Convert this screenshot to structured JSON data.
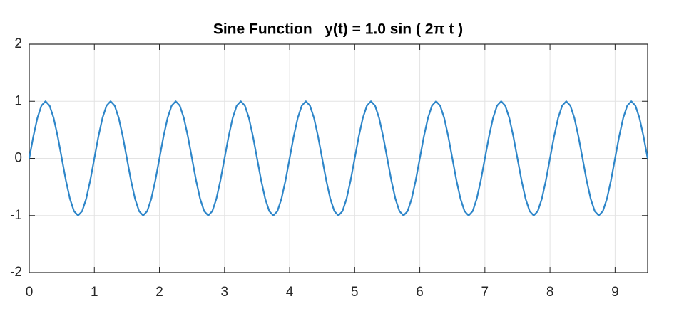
{
  "chart_data": {
    "type": "line",
    "title": "Sine Function   y(t) = 1.0 sin ( 2π t )",
    "x": [
      0,
      0.0625,
      0.125,
      0.1875,
      0.25,
      0.3125,
      0.375,
      0.4375,
      0.5,
      0.5625,
      0.625,
      0.6875,
      0.75,
      0.8125,
      0.875,
      0.9375,
      1,
      1.0625,
      1.125,
      1.1875,
      1.25,
      1.3125,
      1.375,
      1.4375,
      1.5,
      1.5625,
      1.625,
      1.6875,
      1.75,
      1.8125,
      1.875,
      1.9375,
      2,
      2.0625,
      2.125,
      2.1875,
      2.25,
      2.3125,
      2.375,
      2.4375,
      2.5,
      2.5625,
      2.625,
      2.6875,
      2.75,
      2.8125,
      2.875,
      2.9375,
      3,
      3.0625,
      3.125,
      3.1875,
      3.25,
      3.3125,
      3.375,
      3.4375,
      3.5,
      3.5625,
      3.625,
      3.6875,
      3.75,
      3.8125,
      3.875,
      3.9375,
      4,
      4.0625,
      4.125,
      4.1875,
      4.25,
      4.3125,
      4.375,
      4.4375,
      4.5,
      4.5625,
      4.625,
      4.6875,
      4.75,
      4.8125,
      4.875,
      4.9375,
      5,
      5.0625,
      5.125,
      5.1875,
      5.25,
      5.3125,
      5.375,
      5.4375,
      5.5,
      5.5625,
      5.625,
      5.6875,
      5.75,
      5.8125,
      5.875,
      5.9375,
      6,
      6.0625,
      6.125,
      6.1875,
      6.25,
      6.3125,
      6.375,
      6.4375,
      6.5,
      6.5625,
      6.625,
      6.6875,
      6.75,
      6.8125,
      6.875,
      6.9375,
      7,
      7.0625,
      7.125,
      7.1875,
      7.25,
      7.3125,
      7.375,
      7.4375,
      7.5,
      7.5625,
      7.625,
      7.6875,
      7.75,
      7.8125,
      7.875,
      7.9375,
      8,
      8.0625,
      8.125,
      8.1875,
      8.25,
      8.3125,
      8.375,
      8.4375,
      8.5,
      8.5625,
      8.625,
      8.6875,
      8.75,
      8.8125,
      8.875,
      8.9375,
      9,
      9.0625,
      9.125,
      9.1875,
      9.25,
      9.3125,
      9.375,
      9.4375,
      9.5
    ],
    "series": [
      {
        "color": "#2e86c9",
        "values": [
          0,
          0.383,
          0.707,
          0.924,
          1,
          0.924,
          0.707,
          0.383,
          0,
          -0.383,
          -0.707,
          -0.924,
          -1,
          -0.924,
          -0.707,
          -0.383,
          0,
          0.383,
          0.707,
          0.924,
          1,
          0.924,
          0.707,
          0.383,
          0,
          -0.383,
          -0.707,
          -0.924,
          -1,
          -0.924,
          -0.707,
          -0.383,
          0,
          0.383,
          0.707,
          0.924,
          1,
          0.924,
          0.707,
          0.383,
          0,
          -0.383,
          -0.707,
          -0.924,
          -1,
          -0.924,
          -0.707,
          -0.383,
          0,
          0.383,
          0.707,
          0.924,
          1,
          0.924,
          0.707,
          0.383,
          0,
          -0.383,
          -0.707,
          -0.924,
          -1,
          -0.924,
          -0.707,
          -0.383,
          0,
          0.383,
          0.707,
          0.924,
          1,
          0.924,
          0.707,
          0.383,
          0,
          -0.383,
          -0.707,
          -0.924,
          -1,
          -0.924,
          -0.707,
          -0.383,
          0,
          0.383,
          0.707,
          0.924,
          1,
          0.924,
          0.707,
          0.383,
          0,
          -0.383,
          -0.707,
          -0.924,
          -1,
          -0.924,
          -0.707,
          -0.383,
          0,
          0.383,
          0.707,
          0.924,
          1,
          0.924,
          0.707,
          0.383,
          0,
          -0.383,
          -0.707,
          -0.924,
          -1,
          -0.924,
          -0.707,
          -0.383,
          0,
          0.383,
          0.707,
          0.924,
          1,
          0.924,
          0.707,
          0.383,
          0,
          -0.383,
          -0.707,
          -0.924,
          -1,
          -0.924,
          -0.707,
          -0.383,
          0,
          0.383,
          0.707,
          0.924,
          1,
          0.924,
          0.707,
          0.383,
          0,
          -0.383,
          -0.707,
          -0.924,
          -1,
          -0.924,
          -0.707,
          -0.383,
          0,
          0.383,
          0.707,
          0.924,
          1,
          0.924,
          0.707,
          0.383,
          0
        ]
      }
    ],
    "xlim": [
      0,
      9.5
    ],
    "ylim": [
      -2,
      2
    ],
    "xticks": [
      0,
      1,
      2,
      3,
      4,
      5,
      6,
      7,
      8,
      9
    ],
    "yticks": [
      -2,
      -1,
      0,
      1,
      2
    ],
    "grid": true
  }
}
